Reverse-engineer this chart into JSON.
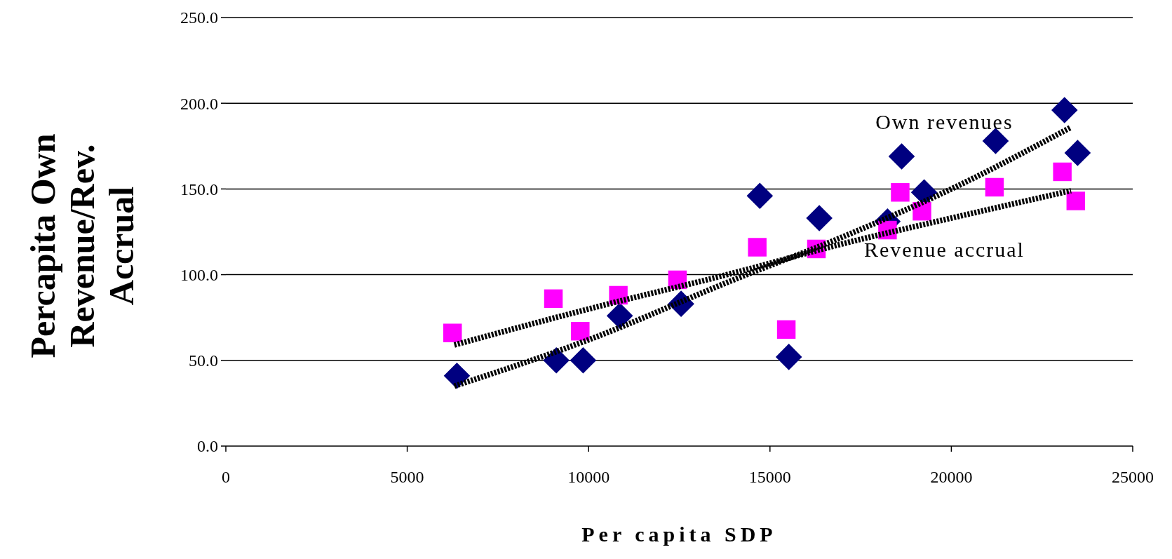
{
  "chart_data": {
    "type": "scatter",
    "xlabel": "Per capita SDP",
    "ylabel": "Percapita Own Revenue/Rev. Accrual",
    "xlim": [
      0,
      25000
    ],
    "xticks": [
      0,
      5000,
      10000,
      15000,
      20000,
      25000
    ],
    "ylim": [
      0,
      250
    ],
    "yticks": [
      {
        "value": 0,
        "label": "0.0"
      },
      {
        "value": 50,
        "label": "50.0"
      },
      {
        "value": 100,
        "label": "100.0"
      },
      {
        "value": 150,
        "label": "150.0"
      },
      {
        "value": 200,
        "label": "200.0"
      },
      {
        "value": 250,
        "label": "250.0"
      }
    ],
    "grid": "y",
    "series": [
      {
        "marker": "diamond",
        "color": "#000080",
        "x": [
          6370,
          9110,
          9850,
          10860,
          12550,
          14720,
          15520,
          16360,
          18240,
          18630,
          19250,
          21220,
          23120,
          23480
        ],
        "values": [
          41,
          50,
          50,
          76,
          83,
          146,
          52,
          133,
          131,
          169,
          148,
          178,
          196,
          171
        ]
      },
      {
        "marker": "square",
        "color": "#ff00ff",
        "x": [
          6250,
          9030,
          9770,
          10820,
          12450,
          14650,
          15450,
          16280,
          18240,
          18590,
          19190,
          21190,
          23060,
          23430
        ],
        "values": [
          66,
          86,
          67,
          88,
          97,
          116,
          68,
          115,
          126,
          148,
          137,
          151,
          160,
          143
        ]
      },
      {
        "type": "line",
        "name": "Own revenues",
        "color": "#000000",
        "line_style": "dotted",
        "marker": "none",
        "x": [
          6300,
          10000,
          14000,
          17000,
          20000,
          23300
        ],
        "values": [
          35,
          62,
          97,
          122,
          150,
          186
        ]
      },
      {
        "type": "line",
        "name": "Revenue accrual",
        "color": "#000000",
        "line_style": "dotted",
        "marker": "none",
        "x": [
          6300,
          10000,
          14000,
          17000,
          20000,
          23300
        ],
        "values": [
          59,
          80,
          101,
          118,
          133,
          149
        ]
      }
    ]
  }
}
